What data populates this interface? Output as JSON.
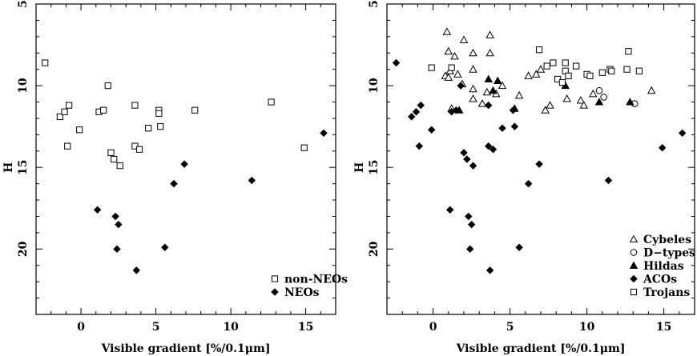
{
  "chart_data": [
    {
      "type": "scatter",
      "title": "",
      "xlabel": "Visible gradient [%/0.1μm]",
      "ylabel": "H",
      "xlim": [
        -3,
        17
      ],
      "ylim": [
        24,
        5
      ],
      "y_inverted": true,
      "xticks": [
        0,
        5,
        10,
        15
      ],
      "yticks": [
        5,
        10,
        15,
        20
      ],
      "legend_position": "bottom-right",
      "series": [
        {
          "name": "non-NEOs",
          "marker": "open-square",
          "points": [
            [
              -2.4,
              8.6
            ],
            [
              -1.4,
              11.9
            ],
            [
              -1.1,
              11.6
            ],
            [
              -0.9,
              13.7
            ],
            [
              -0.8,
              11.2
            ],
            [
              -0.1,
              12.7
            ],
            [
              1.2,
              11.6
            ],
            [
              1.5,
              11.5
            ],
            [
              1.8,
              10.0
            ],
            [
              2.0,
              14.1
            ],
            [
              2.2,
              14.5
            ],
            [
              2.6,
              14.9
            ],
            [
              3.6,
              11.2
            ],
            [
              3.6,
              13.7
            ],
            [
              3.9,
              13.9
            ],
            [
              4.5,
              12.6
            ],
            [
              5.2,
              11.5
            ],
            [
              5.2,
              11.7
            ],
            [
              5.3,
              12.5
            ],
            [
              7.6,
              11.5
            ],
            [
              12.7,
              11.0
            ],
            [
              14.9,
              13.8
            ]
          ]
        },
        {
          "name": "NEOs",
          "marker": "filled-diamond",
          "points": [
            [
              1.1,
              17.6
            ],
            [
              2.3,
              18.0
            ],
            [
              2.5,
              18.5
            ],
            [
              2.4,
              20.0
            ],
            [
              3.7,
              21.3
            ],
            [
              5.6,
              19.9
            ],
            [
              6.2,
              16.0
            ],
            [
              6.9,
              14.8
            ],
            [
              11.4,
              15.8
            ],
            [
              16.2,
              12.9
            ]
          ]
        }
      ]
    },
    {
      "type": "scatter",
      "title": "",
      "xlabel": "Visible gradient [%/0.1μm]",
      "ylabel": "H",
      "xlim": [
        -3,
        17
      ],
      "ylim": [
        24,
        5
      ],
      "y_inverted": true,
      "xticks": [
        0,
        5,
        10,
        15
      ],
      "yticks": [
        5,
        10,
        15,
        20
      ],
      "legend_position": "bottom-right",
      "series": [
        {
          "name": "Cybeles",
          "marker": "open-triangle",
          "points": [
            [
              0.9,
              6.7
            ],
            [
              2.0,
              7.2
            ],
            [
              3.7,
              6.9
            ],
            [
              1.0,
              7.9
            ],
            [
              1.4,
              8.2
            ],
            [
              2.6,
              8.0
            ],
            [
              3.7,
              8.0
            ],
            [
              1.1,
              9.1
            ],
            [
              1.6,
              9.3
            ],
            [
              2.6,
              9.0
            ],
            [
              0.8,
              9.4
            ],
            [
              1.0,
              9.5
            ],
            [
              1.9,
              9.9
            ],
            [
              2.6,
              10.2
            ],
            [
              3.5,
              10.4
            ],
            [
              4.1,
              10.5
            ],
            [
              4.5,
              10.0
            ],
            [
              6.2,
              9.4
            ],
            [
              6.7,
              9.3
            ],
            [
              7.0,
              9.0
            ],
            [
              1.2,
              11.4
            ],
            [
              2.6,
              10.8
            ],
            [
              3.2,
              11.1
            ],
            [
              5.6,
              10.6
            ],
            [
              7.3,
              11.5
            ],
            [
              7.6,
              11.2
            ],
            [
              8.7,
              10.8
            ],
            [
              9.6,
              10.9
            ],
            [
              9.8,
              11.2
            ],
            [
              10.4,
              10.5
            ],
            [
              14.2,
              10.3
            ]
          ]
        },
        {
          "name": "D−types",
          "marker": "open-circle",
          "points": [
            [
              10.8,
              10.3
            ],
            [
              11.1,
              10.7
            ],
            [
              13.1,
              11.1
            ]
          ]
        },
        {
          "name": "Hildas",
          "marker": "filled-triangle",
          "points": [
            [
              3.6,
              9.6
            ],
            [
              4.2,
              9.7
            ],
            [
              3.9,
              10.3
            ],
            [
              8.6,
              10.0
            ],
            [
              10.8,
              11.0
            ],
            [
              12.8,
              11.0
            ],
            [
              1.7,
              11.5
            ],
            [
              5.3,
              11.4
            ]
          ]
        },
        {
          "name": "ACOs",
          "marker": "filled-diamond",
          "points": [
            [
              -2.4,
              8.6
            ],
            [
              -1.4,
              11.9
            ],
            [
              -1.1,
              11.6
            ],
            [
              -0.9,
              13.7
            ],
            [
              -0.8,
              11.2
            ],
            [
              -0.1,
              12.7
            ],
            [
              1.2,
              11.6
            ],
            [
              1.5,
              11.5
            ],
            [
              1.8,
              10.0
            ],
            [
              2.0,
              14.1
            ],
            [
              2.2,
              14.5
            ],
            [
              2.6,
              14.9
            ],
            [
              3.6,
              11.2
            ],
            [
              3.6,
              13.7
            ],
            [
              3.9,
              13.9
            ],
            [
              4.5,
              12.6
            ],
            [
              5.2,
              11.5
            ],
            [
              5.3,
              12.5
            ],
            [
              1.1,
              17.6
            ],
            [
              2.3,
              18.0
            ],
            [
              2.5,
              18.5
            ],
            [
              2.4,
              20.0
            ],
            [
              3.7,
              21.3
            ],
            [
              5.6,
              19.9
            ],
            [
              6.2,
              16.0
            ],
            [
              6.9,
              14.8
            ],
            [
              11.4,
              15.8
            ],
            [
              14.9,
              13.8
            ],
            [
              16.2,
              12.9
            ]
          ]
        },
        {
          "name": "Trojans",
          "marker": "open-square",
          "points": [
            [
              6.9,
              7.8
            ],
            [
              12.7,
              7.9
            ],
            [
              7.4,
              8.8
            ],
            [
              7.8,
              8.6
            ],
            [
              8.6,
              8.6
            ],
            [
              8.6,
              9.1
            ],
            [
              9.3,
              8.8
            ],
            [
              11.5,
              9.0
            ],
            [
              12.6,
              9.0
            ],
            [
              13.4,
              9.1
            ],
            [
              -0.1,
              8.9
            ],
            [
              1.2,
              8.9
            ],
            [
              8.1,
              9.6
            ],
            [
              8.4,
              9.8
            ],
            [
              8.8,
              9.4
            ],
            [
              10.0,
              9.3
            ],
            [
              10.2,
              9.4
            ],
            [
              11.0,
              9.2
            ],
            [
              11.6,
              9.1
            ]
          ]
        }
      ]
    }
  ]
}
